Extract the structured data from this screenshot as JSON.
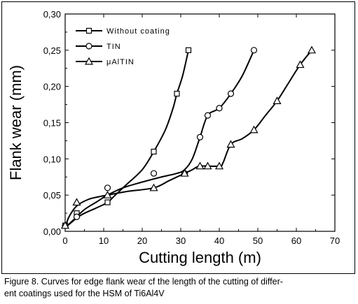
{
  "chart_data": {
    "type": "line",
    "xlabel": "Cutting length (m)",
    "ylabel": "Flank wear (mm)",
    "xlim": [
      0,
      70
    ],
    "ylim": [
      0,
      0.3
    ],
    "xticks": [
      0,
      10,
      20,
      30,
      40,
      50,
      60,
      70
    ],
    "xtick_labels": [
      "0",
      "10",
      "20",
      "30",
      "40",
      "50",
      "60",
      "70"
    ],
    "yticks": [
      0,
      0.05,
      0.1,
      0.15,
      0.2,
      0.25,
      0.3
    ],
    "ytick_labels": [
      "0,00",
      "0,05",
      "0,10",
      "0,15",
      "0,20",
      "0,25",
      "0,30"
    ],
    "grid": false,
    "legend_position": "top-left",
    "series": [
      {
        "name": "Without coating",
        "marker": "square",
        "x": [
          0,
          3,
          11,
          23,
          29,
          32
        ],
        "y": [
          0.008,
          0.025,
          0.04,
          0.11,
          0.19,
          0.25
        ],
        "curve": [
          [
            0,
            0.005
          ],
          [
            4,
            0.022
          ],
          [
            8,
            0.032
          ],
          [
            11,
            0.04
          ],
          [
            13,
            0.05
          ],
          [
            16,
            0.065
          ],
          [
            20,
            0.085
          ],
          [
            23,
            0.11
          ],
          [
            26,
            0.14
          ],
          [
            28,
            0.17
          ],
          [
            29,
            0.19
          ],
          [
            30.5,
            0.215
          ],
          [
            32,
            0.25
          ]
        ]
      },
      {
        "name": "TIN",
        "marker": "circle",
        "x": [
          0,
          3,
          11,
          23,
          31,
          35,
          37,
          40,
          43,
          49
        ],
        "y": [
          0.008,
          0.02,
          0.06,
          0.08,
          0.08,
          0.13,
          0.16,
          0.17,
          0.19,
          0.25
        ],
        "curve": [
          [
            0,
            0.005
          ],
          [
            2,
            0.015
          ],
          [
            5,
            0.03
          ],
          [
            8,
            0.04
          ],
          [
            11,
            0.05
          ],
          [
            15,
            0.06
          ],
          [
            20,
            0.068
          ],
          [
            25,
            0.075
          ],
          [
            29,
            0.08
          ],
          [
            31,
            0.085
          ],
          [
            33,
            0.1
          ],
          [
            35,
            0.13
          ],
          [
            37,
            0.16
          ],
          [
            40,
            0.17
          ],
          [
            43,
            0.19
          ],
          [
            46,
            0.215
          ],
          [
            49,
            0.25
          ]
        ]
      },
      {
        "name": "μAlTIN",
        "marker": "triangle",
        "x": [
          0,
          3,
          11,
          23,
          31,
          35,
          37,
          40,
          43,
          49,
          55,
          61,
          64
        ],
        "y": [
          0.008,
          0.04,
          0.05,
          0.06,
          0.08,
          0.09,
          0.09,
          0.09,
          0.12,
          0.14,
          0.18,
          0.23,
          0.25
        ],
        "curve": [
          [
            0,
            0.005
          ],
          [
            1,
            0.02
          ],
          [
            3,
            0.035
          ],
          [
            6,
            0.044
          ],
          [
            9,
            0.048
          ],
          [
            11,
            0.05
          ],
          [
            16,
            0.055
          ],
          [
            23,
            0.06
          ],
          [
            27,
            0.07
          ],
          [
            31,
            0.08
          ],
          [
            33,
            0.085
          ],
          [
            35,
            0.09
          ],
          [
            40,
            0.09
          ],
          [
            41,
            0.095
          ],
          [
            43,
            0.12
          ],
          [
            46,
            0.128
          ],
          [
            49,
            0.14
          ],
          [
            52,
            0.16
          ],
          [
            55,
            0.18
          ],
          [
            58,
            0.205
          ],
          [
            61,
            0.23
          ],
          [
            64,
            0.25
          ]
        ]
      }
    ]
  },
  "caption": {
    "line1": "Figure 8. Curves for edge flank wear  cf the length of the cutting of differ-",
    "line2": "ent coatings used for the HSM of Ti6Al4V"
  }
}
